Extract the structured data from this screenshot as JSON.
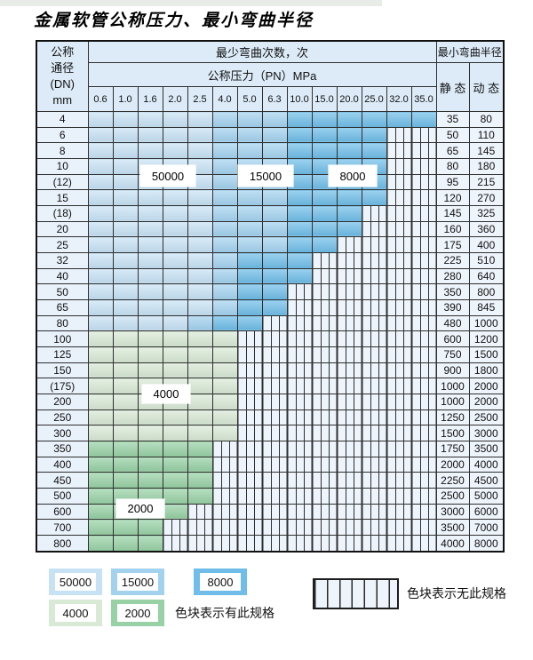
{
  "title": "金属软管公称压力、最小弯曲半径",
  "table": {
    "header": {
      "dn_lines": [
        "公称",
        "通径",
        "(DN)",
        "mm"
      ],
      "cycles_title": "最少弯曲次数，次",
      "pressure_title": "公称压力（PN）MPa",
      "radius_title": "最小弯曲半径",
      "static_label": "静 态",
      "dynamic_label": "动 态",
      "pressures": [
        "0.6",
        "1.0",
        "1.6",
        "2.0",
        "2.5",
        "4.0",
        "5.0",
        "6.3",
        "10.0",
        "15.0",
        "20.0",
        "25.0",
        "32.0",
        "35.0"
      ]
    },
    "cell_legend": {
      "A": "50000",
      "B": "15000",
      "C": "8000",
      "G": "4000",
      "H": "2000",
      "X": "no-spec"
    },
    "rows": [
      {
        "dn": "4",
        "static": "35",
        "dynamic": "80",
        "pattern": "AAAAABBBCCCCCC"
      },
      {
        "dn": "6",
        "static": "50",
        "dynamic": "110",
        "pattern": "AAAAABBBCCCCXX"
      },
      {
        "dn": "8",
        "static": "65",
        "dynamic": "145",
        "pattern": "AAAAABBBCCCCXX"
      },
      {
        "dn": "10",
        "static": "80",
        "dynamic": "180",
        "pattern": "AAAAABBBCCCCXX"
      },
      {
        "dn": "(12)",
        "static": "95",
        "dynamic": "215",
        "pattern": "AAAAABBBCCCCXX"
      },
      {
        "dn": "15",
        "static": "120",
        "dynamic": "270",
        "pattern": "AAAAABBBCCCCXX"
      },
      {
        "dn": "(18)",
        "static": "145",
        "dynamic": "325",
        "pattern": "AAAAABBBCCCXXX"
      },
      {
        "dn": "20",
        "static": "160",
        "dynamic": "360",
        "pattern": "AAAAABBBCCCXXX"
      },
      {
        "dn": "25",
        "static": "175",
        "dynamic": "400",
        "pattern": "AAAAABBBCCXXXX"
      },
      {
        "dn": "32",
        "static": "225",
        "dynamic": "510",
        "pattern": "AAAAABCCCXXXXX"
      },
      {
        "dn": "40",
        "static": "280",
        "dynamic": "640",
        "pattern": "AAAAABCCCXXXXX"
      },
      {
        "dn": "50",
        "static": "350",
        "dynamic": "800",
        "pattern": "AAAAABCCXXXXXX"
      },
      {
        "dn": "65",
        "static": "390",
        "dynamic": "845",
        "pattern": "AAAAABCCXXXXXX"
      },
      {
        "dn": "80",
        "static": "480",
        "dynamic": "1000",
        "pattern": "AAAABCCXXXXXXX"
      },
      {
        "dn": "100",
        "static": "600",
        "dynamic": "1200",
        "pattern": "GGGGGGXXXXXXXX"
      },
      {
        "dn": "125",
        "static": "750",
        "dynamic": "1500",
        "pattern": "GGGGGGXXXXXXXX"
      },
      {
        "dn": "150",
        "static": "900",
        "dynamic": "1800",
        "pattern": "GGGGGGXXXXXXXX"
      },
      {
        "dn": "(175)",
        "static": "1000",
        "dynamic": "2000",
        "pattern": "GGGGGGXXXXXXXX"
      },
      {
        "dn": "200",
        "static": "1000",
        "dynamic": "2000",
        "pattern": "GGGGGGXXXXXXXX"
      },
      {
        "dn": "250",
        "static": "1250",
        "dynamic": "2500",
        "pattern": "GGGGGGXXXXXXXX"
      },
      {
        "dn": "300",
        "static": "1500",
        "dynamic": "3000",
        "pattern": "GGGGGGXXXXXXXX"
      },
      {
        "dn": "350",
        "static": "1750",
        "dynamic": "3500",
        "pattern": "HHHHHXXXXXXXXX"
      },
      {
        "dn": "400",
        "static": "2000",
        "dynamic": "4000",
        "pattern": "HHHHHXXXXXXXXX"
      },
      {
        "dn": "450",
        "static": "2250",
        "dynamic": "4500",
        "pattern": "HHHHHXXXXXXXXX"
      },
      {
        "dn": "500",
        "static": "2500",
        "dynamic": "5000",
        "pattern": "HHHHHXXXXXXXXX"
      },
      {
        "dn": "600",
        "static": "3000",
        "dynamic": "6000",
        "pattern": "HHHHXXXXXXXXXX"
      },
      {
        "dn": "700",
        "static": "3500",
        "dynamic": "7000",
        "pattern": "HHHXXXXXXXXXXX"
      },
      {
        "dn": "800",
        "static": "4000",
        "dynamic": "8000",
        "pattern": "HHHXXXXXXXXXXX"
      }
    ],
    "overlays": [
      "50000",
      "15000",
      "8000",
      "4000",
      "2000"
    ]
  },
  "legend": {
    "swatches": [
      {
        "label": "50000",
        "color": "#c7e2f5"
      },
      {
        "label": "15000",
        "color": "#a3d2ef"
      },
      {
        "label": "8000",
        "color": "#6fbde8"
      },
      {
        "label": "4000",
        "color": "#d8e9d5"
      },
      {
        "label": "2000",
        "color": "#97d1a5"
      }
    ],
    "has_spec_text": "色块表示有此规格",
    "no_spec_text": "色块表示无此规格"
  },
  "colors": {
    "c50000": "#c7e2f5",
    "c15000": "#a3d2ef",
    "c8000": "#6fbde8",
    "c4000": "#d8e9d5",
    "c2000": "#97d1a5",
    "hatchbg": "#edf4fb",
    "headbg": "#dcebf7",
    "dnbg": "#e9f1fa",
    "valbg": "#eef4fb",
    "grid": "#2f2f2f"
  }
}
